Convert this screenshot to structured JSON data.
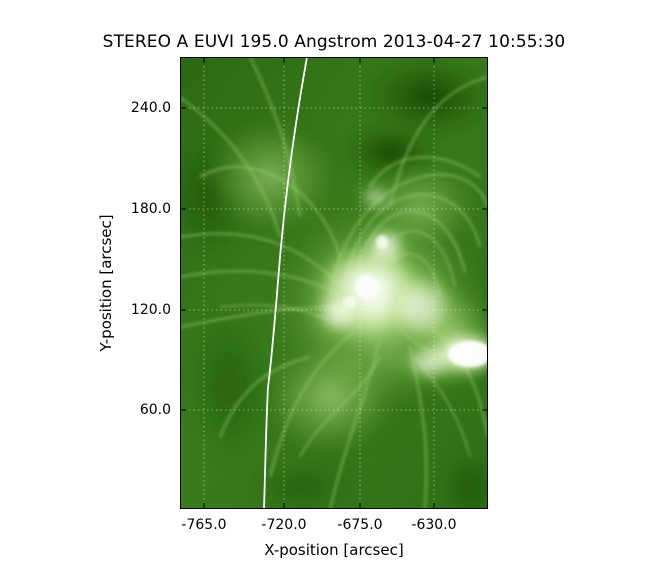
{
  "figure": {
    "title": "STEREO A EUVI 195.0 Angstrom 2013-04-27 10:55:30",
    "xlabel": "X-position [arcsec]",
    "ylabel": "Y-position [arcsec]"
  },
  "axes": {
    "x_ticks": [
      "-765.0",
      "-720.0",
      "-675.0",
      "-630.0"
    ],
    "y_ticks": [
      "240.0",
      "180.0",
      "120.0",
      "60.0"
    ],
    "grid": "on, dotted",
    "colormap": "green"
  },
  "image": {
    "description_type": "solar EUV observation",
    "limb_line_color": "#ffffff"
  }
}
